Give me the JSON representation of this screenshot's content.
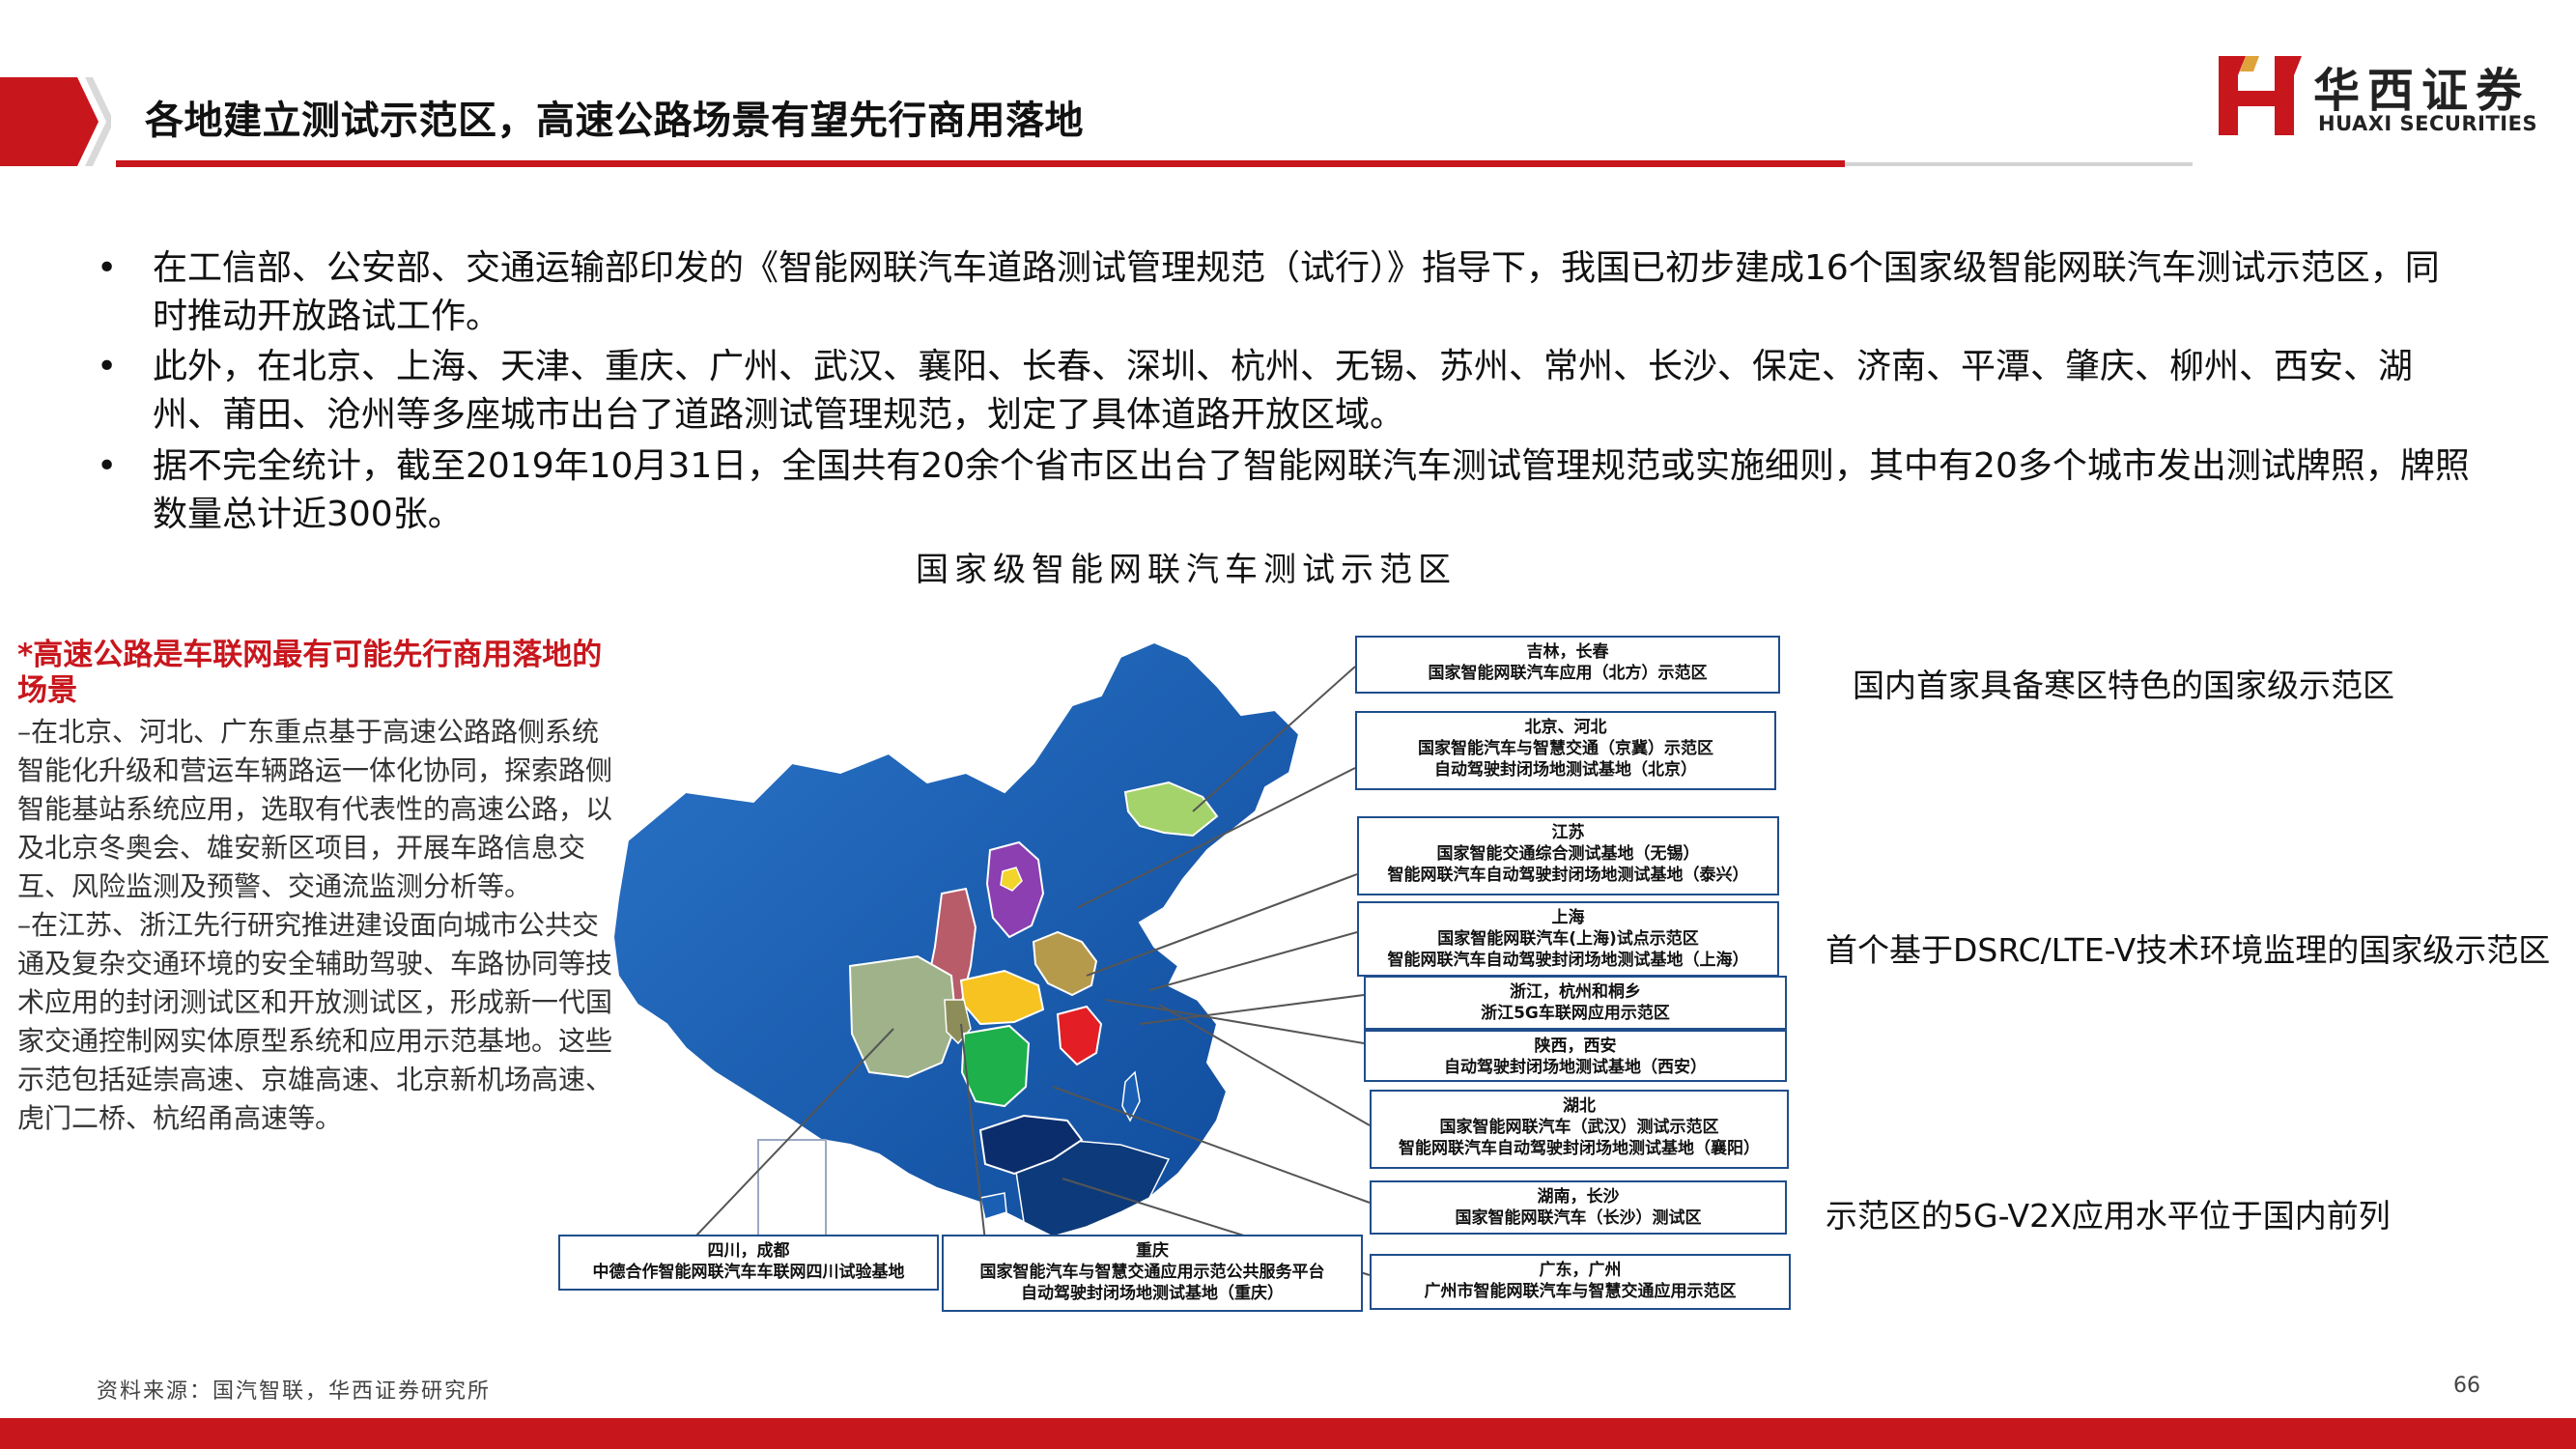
{
  "header": {
    "title": "各地建立测试示范区，高速公路场景有望先行商用落地",
    "logo_cn": "华西证券",
    "logo_en": "HUAXI SECURITIES",
    "brand_red": "#c8161d"
  },
  "bullets": [
    "在工信部、公安部、交通运输部印发的《智能网联汽车道路测试管理规范（试行）》指导下，我国已初步建成16个国家级智能网联汽车测试示范区，同时推动开放路试工作。",
    "此外，在北京、上海、天津、重庆、广州、武汉、襄阳、长春、深圳、杭州、无锡、苏州、常州、长沙、保定、济南、平潭、肇庆、柳州、西安、湖州、莆田、沧州等多座城市出台了道路测试管理规范，划定了具体道路开放区域。",
    "据不完全统计，截至2019年10月31日，全国共有20余个省市区出台了智能网联汽车测试管理规范或实施细则，其中有20多个城市发出测试牌照，牌照数量总计近300张。"
  ],
  "bullet_symbol": "•",
  "map_title": "国家级智能网联汽车测试示范区",
  "left_panel": {
    "heading": "*高速公路是车联网最有可能先行商用落地的场景",
    "para1": "–在北京、河北、广东重点基于高速公路路侧系统智能化升级和营运车辆路运一体化协同，探索路侧智能基站系统应用，选取有代表性的高速公路，以及北京冬奥会、雄安新区项目，开展车路信息交互、风险监测及预警、交通流监测分析等。",
    "para2": "–在江苏、浙江先行研究推进建设面向城市公共交通及复杂交通环境的安全辅助驾驶、车路协同等技术应用的封闭测试区和开放测试区，形成新一代国家交通控制网实体原型系统和应用示范基地。这些示范包括延崇高速、京雄高速、北京新机场高速、虎门二桥、杭绍甬高速等。"
  },
  "labels": {
    "jilin": [
      "吉林，长春",
      "国家智能网联汽车应用（北方）示范区"
    ],
    "beijing": [
      "北京、河北",
      "国家智能汽车与智慧交通（京冀）示范区",
      "自动驾驶封闭场地测试基地（北京）"
    ],
    "jiangsu": [
      "江苏",
      "国家智能交通综合测试基地（无锡）",
      "智能网联汽车自动驾驶封闭场地测试基地（泰兴）"
    ],
    "shanghai": [
      "上海",
      "国家智能网联汽车(上海)试点示范区",
      "智能网联汽车自动驾驶封闭场地测试基地（上海）"
    ],
    "zhejiang": [
      "浙江，杭州和桐乡",
      "浙江5G车联网应用示范区"
    ],
    "shaanxi": [
      "陕西，西安",
      "自动驾驶封闭场地测试基地（西安）"
    ],
    "hubei": [
      "湖北",
      "国家智能网联汽车（武汉）测试示范区",
      "智能网联汽车自动驾驶封闭场地测试基地（襄阳）"
    ],
    "hunan": [
      "湖南，长沙",
      "国家智能网联汽车（长沙）测试区"
    ],
    "guangdong": [
      "广东，广州",
      "广州市智能网联汽车与智慧交通应用示范区"
    ],
    "sichuan": [
      "四川，成都",
      "中德合作智能网联汽车车联网四川试验基地"
    ],
    "chongqing": [
      "重庆",
      "国家智能汽车与智慧交通应用示范公共服务平台",
      "自动驾驶封闭场地测试基地（重庆）"
    ]
  },
  "notes": {
    "n1": "国内首家具备寒区特色的国家级示范区",
    "n2": "首个基于DSRC/LTE-V技术环境监理的国家级示范区",
    "n3": "示范区的5G-V2X应用水平位于国内前列"
  },
  "footer": {
    "source": "资料来源：国汽智联，华西证券研究所",
    "page_number": "66"
  },
  "colors": {
    "map_base": "#1a5fb4",
    "map_dark": "#0d3a7a",
    "jilin_region": "#a5d36b",
    "hebei_region": "#8b3fb0",
    "beijing_region": "#f2d42a",
    "jiangsu_region": "#b59a4c",
    "shaanxi_region": "#b85c6a",
    "sichuan_region": "#9fb28a",
    "hubei_region": "#f7c321",
    "hunan_region": "#1db04b",
    "zhejiang_region": "#e31e24",
    "guangdong_region": "#0b2d6b",
    "label_border": "#1f4e8c"
  }
}
